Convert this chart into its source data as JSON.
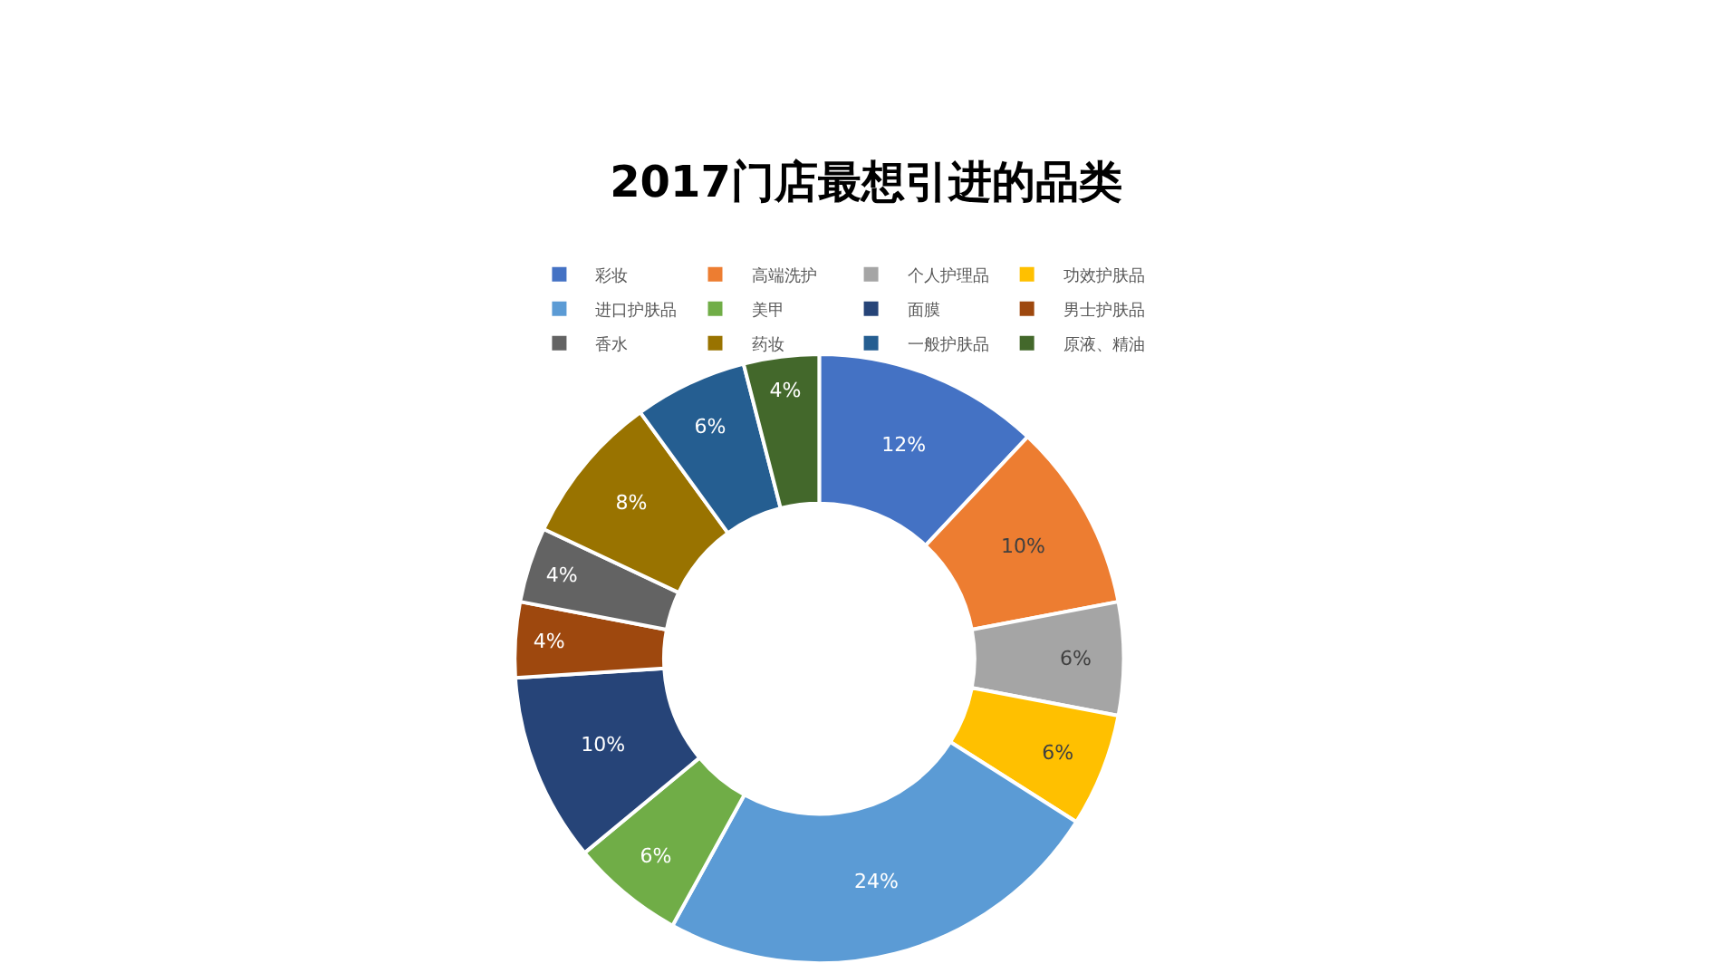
{
  "chart_data": {
    "type": "donut",
    "title": "2017门店最想引进的品类",
    "categories": [
      "彩妆",
      "高端洗护",
      "个人护理品",
      "功效护肤品",
      "进口护肤品",
      "美甲",
      "面膜",
      "男士护肤品",
      "香水",
      "药妆",
      "一般护肤品",
      "原液、精油"
    ],
    "values": [
      12,
      10,
      6,
      6,
      24,
      6,
      10,
      4,
      4,
      8,
      6,
      4
    ],
    "value_labels": [
      "12%",
      "10%",
      "6%",
      "6%",
      "24%",
      "6%",
      "10%",
      "4%",
      "4%",
      "8%",
      "6%",
      "4%"
    ],
    "colors": [
      "#4472c4",
      "#ed7d31",
      "#a5a5a5",
      "#ffc000",
      "#5b9bd5",
      "#70ad47",
      "#264478",
      "#9e480e",
      "#636363",
      "#997300",
      "#255e91",
      "#43682b"
    ],
    "legend": "top"
  }
}
